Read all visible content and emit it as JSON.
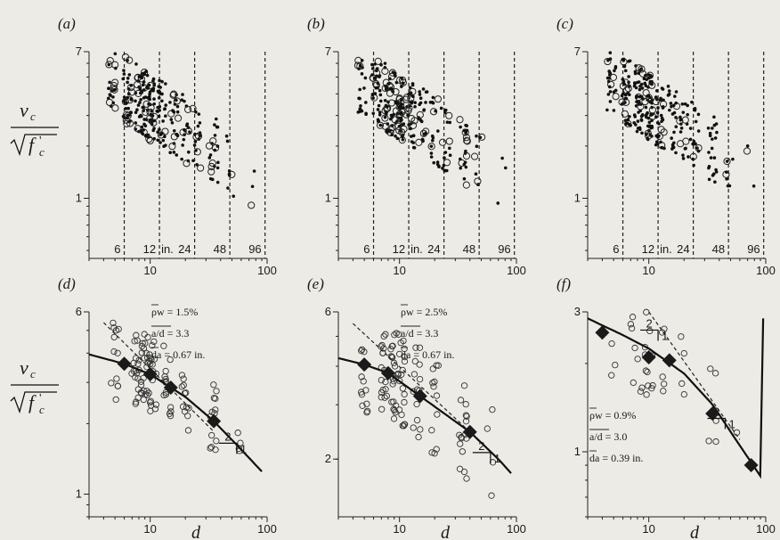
{
  "ylabel": {
    "numerator": "v",
    "numerator_sub": "c",
    "root_var": "f",
    "root_sub": "c",
    "root_prime": "'"
  },
  "xlabel": "d",
  "chart_data": [
    {
      "type": "scatter",
      "panel_label": "(a)",
      "xscale": "log",
      "yscale": "log",
      "xlim": [
        3,
        100
      ],
      "ylim": [
        0.45,
        7
      ],
      "xticks": [
        {
          "v": 10,
          "label": "10"
        },
        {
          "v": 100,
          "label": "100"
        }
      ],
      "yticks": [
        {
          "v": 1,
          "label": "1"
        },
        {
          "v": 7,
          "label": "7"
        }
      ],
      "size_lines": [
        {
          "x": 6,
          "label": "6"
        },
        {
          "x": 12,
          "label": "12"
        },
        {
          "x": 24,
          "label": "24"
        },
        {
          "x": 48,
          "label": "48"
        },
        {
          "x": 96,
          "label": "96"
        }
      ],
      "size_unit_label": "in.",
      "seed": 11
    },
    {
      "type": "scatter",
      "panel_label": "(b)",
      "xscale": "log",
      "yscale": "log",
      "xlim": [
        3,
        100
      ],
      "ylim": [
        0.45,
        7
      ],
      "xticks": [
        {
          "v": 10,
          "label": "10"
        },
        {
          "v": 100,
          "label": "100"
        }
      ],
      "yticks": [
        {
          "v": 1,
          "label": "1"
        },
        {
          "v": 7,
          "label": "7"
        }
      ],
      "size_lines": [
        {
          "x": 6,
          "label": "6"
        },
        {
          "x": 12,
          "label": "12"
        },
        {
          "x": 24,
          "label": "24"
        },
        {
          "x": 48,
          "label": "48"
        },
        {
          "x": 96,
          "label": "96"
        }
      ],
      "size_unit_label": "in.",
      "seed": 23
    },
    {
      "type": "scatter",
      "panel_label": "(c)",
      "xscale": "log",
      "yscale": "log",
      "xlim": [
        3,
        100
      ],
      "ylim": [
        0.45,
        7
      ],
      "xticks": [
        {
          "v": 10,
          "label": "10"
        },
        {
          "v": 100,
          "label": "100"
        }
      ],
      "yticks": [
        {
          "v": 1,
          "label": "1"
        },
        {
          "v": 7,
          "label": "7"
        }
      ],
      "size_lines": [
        {
          "x": 6,
          "label": "6"
        },
        {
          "x": 12,
          "label": "12"
        },
        {
          "x": 24,
          "label": "24"
        },
        {
          "x": 48,
          "label": "48"
        },
        {
          "x": 96,
          "label": "96"
        }
      ],
      "size_unit_label": "in.",
      "seed": 37
    },
    {
      "type": "scatter",
      "panel_label": "(d)",
      "xscale": "log",
      "yscale": "log",
      "xlim": [
        3,
        100
      ],
      "ylim": [
        0.8,
        6
      ],
      "xticks": [
        {
          "v": 10,
          "label": "10"
        },
        {
          "v": 100,
          "label": "100"
        }
      ],
      "yticks": [
        {
          "v": 1,
          "label": "1"
        },
        {
          "v": 6,
          "label": "6"
        }
      ],
      "annotations": [
        "ρw = 1.5%",
        "a/d = 3.3",
        "da = 0.67 in."
      ],
      "bin_means": [
        {
          "x": 6,
          "y": 3.6
        },
        {
          "x": 10,
          "y": 3.25
        },
        {
          "x": 15,
          "y": 2.85
        },
        {
          "x": 35,
          "y": 2.05
        }
      ],
      "curve": [
        {
          "x": 3,
          "y": 3.95
        },
        {
          "x": 6,
          "y": 3.6
        },
        {
          "x": 10,
          "y": 3.25
        },
        {
          "x": 20,
          "y": 2.6
        },
        {
          "x": 35,
          "y": 2.05
        },
        {
          "x": 60,
          "y": 1.55
        },
        {
          "x": 90,
          "y": 1.25
        }
      ],
      "slope_line": [
        {
          "x": 4,
          "y": 5.4
        },
        {
          "x": 35,
          "y": 1.85
        }
      ],
      "slope_triangle": {
        "x": 55,
        "y": 1.65,
        "rise": "1",
        "run": "2"
      },
      "seed": 41
    },
    {
      "type": "scatter",
      "panel_label": "(e)",
      "xscale": "log",
      "yscale": "log",
      "xlim": [
        3,
        100
      ],
      "ylim": [
        1.3,
        6
      ],
      "xticks": [
        {
          "v": 10,
          "label": "10"
        },
        {
          "v": 100,
          "label": "100"
        }
      ],
      "yticks": [
        {
          "v": 2,
          "label": "2"
        },
        {
          "v": 6,
          "label": "6"
        }
      ],
      "annotations": [
        "ρw = 2.5%",
        "a/d = 3.3",
        "da = 0.67 in."
      ],
      "bin_means": [
        {
          "x": 5,
          "y": 4.05
        },
        {
          "x": 8,
          "y": 3.8
        },
        {
          "x": 15,
          "y": 3.2
        },
        {
          "x": 40,
          "y": 2.45
        }
      ],
      "curve": [
        {
          "x": 3,
          "y": 4.25
        },
        {
          "x": 5,
          "y": 4.05
        },
        {
          "x": 8,
          "y": 3.8
        },
        {
          "x": 15,
          "y": 3.2
        },
        {
          "x": 40,
          "y": 2.45
        },
        {
          "x": 70,
          "y": 2.0
        },
        {
          "x": 90,
          "y": 1.8
        }
      ],
      "slope_line": [
        {
          "x": 4,
          "y": 5.5
        },
        {
          "x": 40,
          "y": 2.45
        }
      ],
      "slope_triangle": {
        "x": 60,
        "y": 2.1,
        "rise": "1",
        "run": "2"
      },
      "seed": 53
    },
    {
      "type": "scatter",
      "panel_label": "(f)",
      "xscale": "log",
      "yscale": "log",
      "xlim": [
        3,
        100
      ],
      "ylim": [
        0.6,
        3
      ],
      "xticks": [
        {
          "v": 10,
          "label": "10"
        },
        {
          "v": 100,
          "label": "100"
        }
      ],
      "yticks": [
        {
          "v": 1,
          "label": "1"
        },
        {
          "v": 3,
          "label": "3"
        }
      ],
      "annotations": [
        "ρw = 0.9%",
        "a/d = 3.0",
        "da = 0.39 in."
      ],
      "bin_means": [
        {
          "x": 4,
          "y": 2.55
        },
        {
          "x": 10,
          "y": 2.1
        },
        {
          "x": 15,
          "y": 2.05
        },
        {
          "x": 35,
          "y": 1.35
        },
        {
          "x": 75,
          "y": 0.9
        }
      ],
      "curve": [
        {
          "x": 3,
          "y": 2.85
        },
        {
          "x": 6,
          "y": 2.5
        },
        {
          "x": 10,
          "y": 2.25
        },
        {
          "x": 20,
          "y": 1.85
        },
        {
          "x": 35,
          "y": 1.45
        },
        {
          "x": 60,
          "y": 1.05
        },
        {
          "x": 95,
          "y": 0.8
        }
      ],
      "slope_line": [
        {
          "x": 10,
          "y": 3.0
        },
        {
          "x": 60,
          "y": 1.1
        }
      ],
      "slope_triangle_top": {
        "x": 12,
        "y": 2.6,
        "rise": "1",
        "run": "2"
      },
      "slope_triangle": {
        "x": 45,
        "y": 1.3,
        "rise": "1",
        "run": "2"
      },
      "seed": 67
    }
  ]
}
